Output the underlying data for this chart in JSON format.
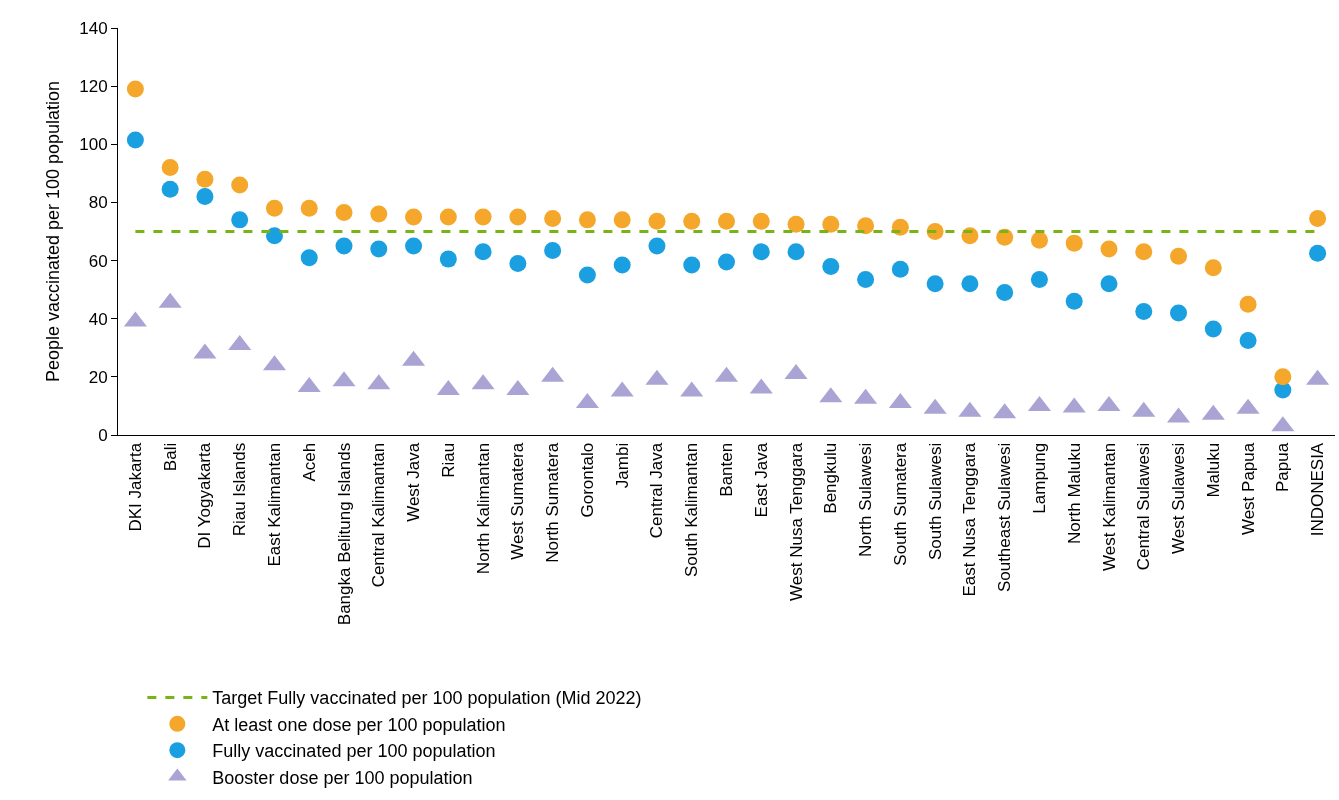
{
  "chart_data": {
    "type": "scatter",
    "ylabel": "People vaccinated per 100 population",
    "categories": [
      "DKI Jakarta",
      "Bali",
      "DI Yogyakarta",
      "Riau Islands",
      "East Kalimantan",
      "Aceh",
      "Bangka Belitung Islands",
      "Central Kalimantan",
      "West Java",
      "Riau",
      "North Kalimantan",
      "West Sumatera",
      "North Sumatera",
      "Gorontalo",
      "Jambi",
      "Central Java",
      "South Kalimantan",
      "Banten",
      "East Java",
      "West Nusa Tenggara",
      "Bengkulu",
      "North Sulawesi",
      "South Sumatera",
      "South Sulawesi",
      "East Nusa Tenggara",
      "Southeast Sulawesi",
      "Lampung",
      "North Maluku",
      "West Kalimantan",
      "Central Sulawesi",
      "West Sulawesi",
      "Maluku",
      "West Papua",
      "Papua",
      "INDONESIA"
    ],
    "series": [
      {
        "name": "Target Fully vaccinated per 100 population (Mid 2022)",
        "type": "line",
        "line_style": "dashed",
        "marker": "none",
        "color": "#7ab317",
        "values": [
          70,
          70,
          70,
          70,
          70,
          70,
          70,
          70,
          70,
          70,
          70,
          70,
          70,
          70,
          70,
          70,
          70,
          70,
          70,
          70,
          70,
          70,
          70,
          70,
          70,
          70,
          70,
          70,
          70,
          70,
          70,
          70,
          70,
          70,
          70
        ]
      },
      {
        "name": "At least one dose per 100 population",
        "marker": "circle",
        "color": "#f4a72a",
        "values": [
          119,
          92,
          88,
          86,
          78,
          78,
          76.5,
          76,
          75,
          75,
          75,
          75,
          74.5,
          74,
          74,
          73.5,
          73.5,
          73.5,
          73.5,
          72.5,
          72.5,
          72,
          71.5,
          70,
          68.5,
          68,
          67,
          66,
          64,
          63,
          61.5,
          57.5,
          45,
          20,
          74.5
        ]
      },
      {
        "name": "Fully vaccinated per 100 population",
        "marker": "circle",
        "color": "#1a9fe0",
        "values": [
          101.5,
          84.5,
          82,
          74,
          68.5,
          61,
          65,
          64,
          65,
          60.5,
          63,
          59,
          63.5,
          55,
          58.5,
          65,
          58.5,
          59.5,
          63,
          63,
          58,
          53.5,
          57,
          52,
          52,
          49,
          53.5,
          46,
          52,
          42.5,
          42,
          36.5,
          32.5,
          15.5,
          62.5
        ]
      },
      {
        "name": "Booster dose per 100 population",
        "marker": "triangle",
        "color": "#a9a4d4",
        "values": [
          39,
          45.5,
          28,
          31,
          24,
          16.5,
          18.5,
          17.5,
          25.5,
          15.5,
          17.5,
          15.5,
          20,
          11,
          15,
          19,
          15,
          20,
          16,
          21,
          13,
          12.5,
          11,
          9,
          8,
          7.5,
          10,
          9.5,
          10,
          8,
          6,
          7,
          9,
          3,
          19
        ]
      }
    ],
    "ylim": [
      0,
      140
    ],
    "yticks": [
      0,
      20,
      40,
      60,
      80,
      100,
      120,
      140
    ],
    "grid": false,
    "legend": "bottom"
  }
}
